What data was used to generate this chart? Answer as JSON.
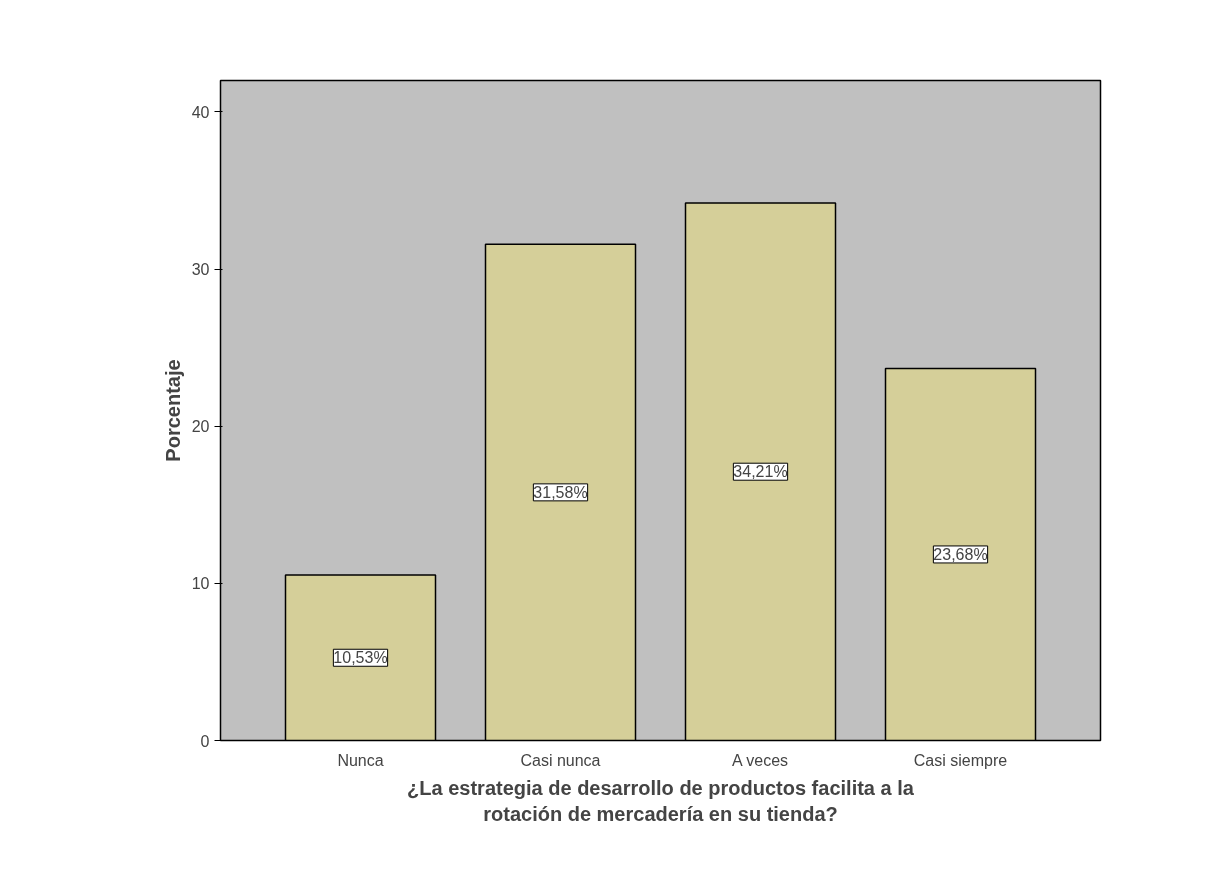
{
  "chart_data": {
    "type": "bar",
    "categories": [
      "Nunca",
      "Casi nunca",
      "A veces",
      "Casi siempre"
    ],
    "values": [
      10.53,
      31.58,
      34.21,
      23.68
    ],
    "value_labels": [
      "10,53%",
      "31,58%",
      "34,21%",
      "23,68%"
    ],
    "color": "#d5cf99",
    "xlabel": "¿La estrategia de desarrollo de productos facilita a la\nrotación de mercadería en su tienda?",
    "ylabel": "Porcentaje",
    "ylim": [
      0,
      42
    ],
    "yticks": [
      0,
      10,
      20,
      30,
      40
    ],
    "grid": false
  }
}
